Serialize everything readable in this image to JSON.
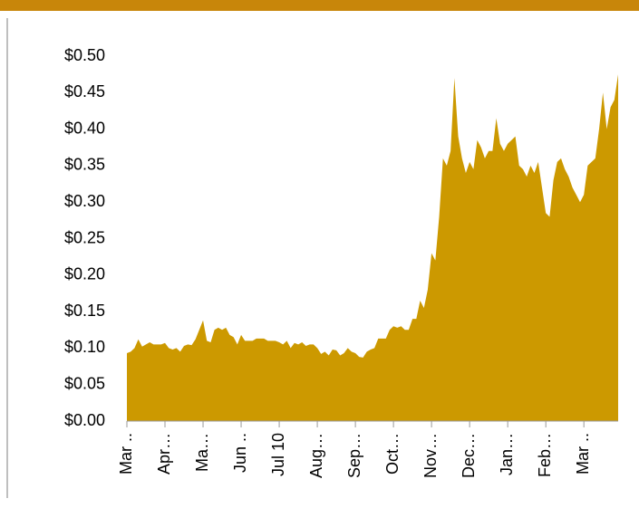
{
  "chart_data": {
    "type": "area",
    "color": "#cc9900",
    "values": [
      0.093,
      0.095,
      0.1,
      0.112,
      0.102,
      0.105,
      0.108,
      0.105,
      0.105,
      0.105,
      0.107,
      0.1,
      0.098,
      0.1,
      0.095,
      0.103,
      0.105,
      0.104,
      0.112,
      0.125,
      0.138,
      0.11,
      0.108,
      0.125,
      0.128,
      0.125,
      0.128,
      0.118,
      0.115,
      0.105,
      0.118,
      0.11,
      0.11,
      0.11,
      0.113,
      0.113,
      0.113,
      0.11,
      0.11,
      0.11,
      0.108,
      0.105,
      0.11,
      0.1,
      0.107,
      0.105,
      0.108,
      0.103,
      0.105,
      0.105,
      0.1,
      0.092,
      0.095,
      0.09,
      0.098,
      0.097,
      0.09,
      0.093,
      0.1,
      0.095,
      0.093,
      0.088,
      0.087,
      0.095,
      0.098,
      0.1,
      0.113,
      0.113,
      0.113,
      0.125,
      0.13,
      0.128,
      0.13,
      0.125,
      0.125,
      0.14,
      0.14,
      0.165,
      0.155,
      0.18,
      0.23,
      0.22,
      0.28,
      0.36,
      0.35,
      0.37,
      0.47,
      0.39,
      0.36,
      0.34,
      0.355,
      0.345,
      0.385,
      0.375,
      0.36,
      0.37,
      0.37,
      0.415,
      0.38,
      0.37,
      0.38,
      0.385,
      0.39,
      0.35,
      0.345,
      0.335,
      0.35,
      0.34,
      0.355,
      0.32,
      0.285,
      0.28,
      0.33,
      0.355,
      0.36,
      0.345,
      0.335,
      0.32,
      0.31,
      0.3,
      0.31,
      0.35,
      0.355,
      0.36,
      0.4,
      0.45,
      0.4,
      0.43,
      0.44,
      0.475
    ],
    "xlim": [
      0,
      129
    ],
    "xticks": [
      {
        "value": 0,
        "label": "Mar .."
      },
      {
        "value": 10,
        "label": "Apr…"
      },
      {
        "value": 20,
        "label": "Ma…"
      },
      {
        "value": 30,
        "label": "Jun .."
      },
      {
        "value": 40,
        "label": "Jul 10"
      },
      {
        "value": 50,
        "label": "Aug…"
      },
      {
        "value": 60,
        "label": "Sep…"
      },
      {
        "value": 70,
        "label": "Oct…"
      },
      {
        "value": 80,
        "label": "Nov…"
      },
      {
        "value": 90,
        "label": "Dec…"
      },
      {
        "value": 100,
        "label": "Jan…"
      },
      {
        "value": 110,
        "label": "Feb…"
      },
      {
        "value": 120,
        "label": "Mar .."
      }
    ],
    "ylim": [
      0,
      0.5
    ],
    "yticks": [
      {
        "value": 0,
        "label": "$0.00"
      },
      {
        "value": 0.05,
        "label": "$0.05"
      },
      {
        "value": 0.1,
        "label": "$0.10"
      },
      {
        "value": 0.15,
        "label": "$0.15"
      },
      {
        "value": 0.2,
        "label": "$0.20"
      },
      {
        "value": 0.25,
        "label": "$0.25"
      },
      {
        "value": 0.3,
        "label": "$0.30"
      },
      {
        "value": 0.35,
        "label": "$0.35"
      },
      {
        "value": 0.4,
        "label": "$0.40"
      },
      {
        "value": 0.45,
        "label": "$0.45"
      },
      {
        "value": 0.5,
        "label": "$0.50"
      }
    ]
  }
}
